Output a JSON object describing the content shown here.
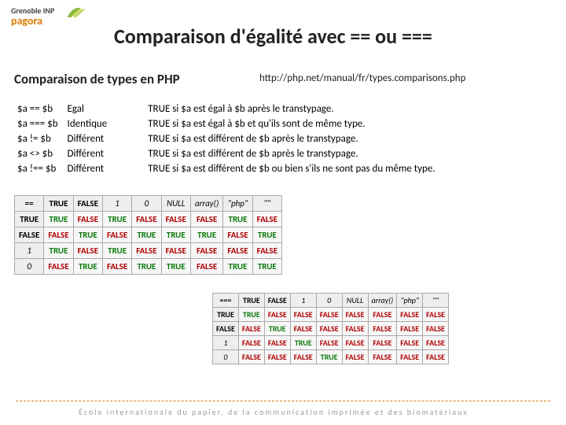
{
  "logo": {
    "line1": "Grenoble INP",
    "line2": "pagora"
  },
  "title": "Comparaison d'égalité avec == ou ===",
  "subtitle": "Comparaison de types en PHP",
  "url": "http://php.net/manual/fr/types.comparisons.php",
  "operators": [
    {
      "expr": "$a == $b",
      "name": "Egal",
      "desc": "TRUE si $a est égal à $b après le transtypage."
    },
    {
      "expr": "$a === $b",
      "name": "Identique",
      "desc": "TRUE si $a est égal à $b et qu'ils sont de même type."
    },
    {
      "expr": "$a != $b",
      "name": "Différent",
      "desc": "TRUE si $a est différent de $b après le transtypage."
    },
    {
      "expr": "$a <> $b",
      "name": "Différent",
      "desc": "TRUE si $a est différent de $b après le transtypage."
    },
    {
      "expr": "$a !== $b",
      "name": "Différent",
      "desc": "TRUE si $a est différent de $b ou bien s'ils ne sont pas du même type."
    }
  ],
  "table_eq": {
    "corner": "==",
    "headers": [
      "TRUE",
      "FALSE",
      "1",
      "0",
      "NULL",
      "array()",
      "\"php\"",
      "\"\""
    ],
    "row_headers": [
      "TRUE",
      "FALSE",
      "1",
      "0"
    ],
    "cells": [
      [
        "TRUE",
        "FALSE",
        "TRUE",
        "FALSE",
        "FALSE",
        "FALSE",
        "TRUE",
        "FALSE"
      ],
      [
        "FALSE",
        "TRUE",
        "FALSE",
        "TRUE",
        "TRUE",
        "TRUE",
        "FALSE",
        "TRUE"
      ],
      [
        "TRUE",
        "FALSE",
        "TRUE",
        "FALSE",
        "FALSE",
        "FALSE",
        "FALSE",
        "FALSE"
      ],
      [
        "FALSE",
        "TRUE",
        "FALSE",
        "TRUE",
        "TRUE",
        "FALSE",
        "TRUE",
        "TRUE"
      ]
    ]
  },
  "table_eqeq": {
    "corner": "===",
    "headers": [
      "TRUE",
      "FALSE",
      "1",
      "0",
      "NULL",
      "array()",
      "\"php\"",
      "\"\""
    ],
    "row_headers": [
      "TRUE",
      "FALSE",
      "1",
      "0"
    ],
    "cells": [
      [
        "TRUE",
        "FALSE",
        "FALSE",
        "FALSE",
        "FALSE",
        "FALSE",
        "FALSE",
        "FALSE"
      ],
      [
        "FALSE",
        "TRUE",
        "FALSE",
        "FALSE",
        "FALSE",
        "FALSE",
        "FALSE",
        "FALSE"
      ],
      [
        "FALSE",
        "FALSE",
        "TRUE",
        "FALSE",
        "FALSE",
        "FALSE",
        "FALSE",
        "FALSE"
      ],
      [
        "FALSE",
        "FALSE",
        "FALSE",
        "TRUE",
        "FALSE",
        "FALSE",
        "FALSE",
        "FALSE"
      ]
    ]
  },
  "footer": "École internationale du papier, de la communication imprimée et des biomatériaux",
  "colors": {
    "true": "#0a7a0a",
    "false": "#b00000",
    "accent": "#d97a00"
  }
}
